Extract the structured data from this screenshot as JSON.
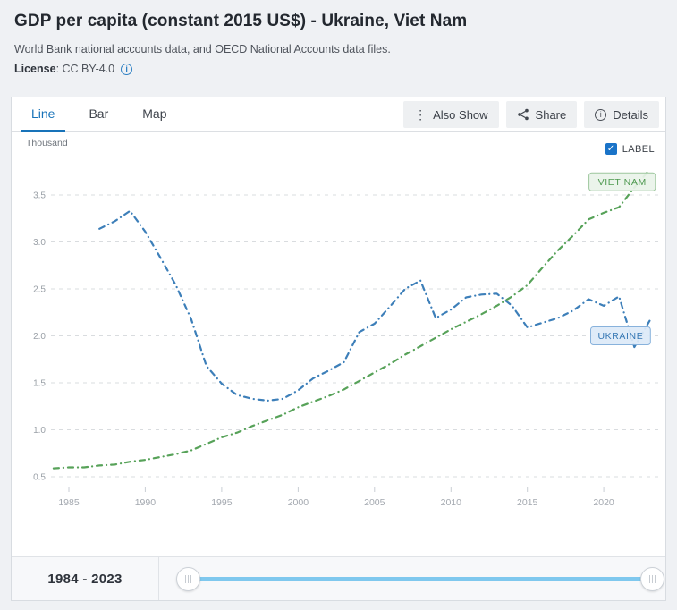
{
  "header": {
    "title": "GDP per capita (constant 2015 US$) - Ukraine, Viet Nam",
    "source": "World Bank national accounts data, and OECD National Accounts data files.",
    "license_label": "License",
    "license_value": ": CC BY-4.0",
    "license_info_icon": "i"
  },
  "toolbar": {
    "tabs": [
      {
        "label": "Line",
        "active": true
      },
      {
        "label": "Bar",
        "active": false
      },
      {
        "label": "Map",
        "active": false
      }
    ],
    "buttons": [
      {
        "label": "Also Show",
        "icon": "kebab-menu-icon"
      },
      {
        "label": "Share",
        "icon": "share-icon"
      },
      {
        "label": "Details",
        "icon": "info-icon"
      }
    ]
  },
  "chart": {
    "unit_label": "Thousand",
    "label_checkbox": {
      "label": "LABEL",
      "checked": true,
      "check_glyph": "✓"
    }
  },
  "chart_data": {
    "type": "line",
    "title": "GDP per capita (constant 2015 US$) - Ukraine, Viet Nam",
    "ylabel": "Thousand (constant 2015 US$)",
    "xlim": [
      1983.2,
      2023.8
    ],
    "ylim": [
      0.25,
      3.95
    ],
    "x_ticks": [
      1985,
      1990,
      1995,
      2000,
      2005,
      2010,
      2015,
      2020
    ],
    "y_ticks": [
      0.5,
      1.0,
      1.5,
      2.0,
      2.5,
      3.0,
      3.5
    ],
    "grid": "horizontal-dashed",
    "legend": "end-of-line-badges",
    "series": [
      {
        "name": "VIET NAM",
        "data_name": "vietnam",
        "color": "#57a259",
        "style": "dash-dot",
        "badge": {
          "year": 2021.2,
          "value": 3.64,
          "bg": "#eaf3ea",
          "border": "#9cc69d",
          "text_color": "#4e9950"
        },
        "points": [
          [
            1984,
            0.59
          ],
          [
            1985,
            0.6
          ],
          [
            1986,
            0.6
          ],
          [
            1987,
            0.62
          ],
          [
            1988,
            0.63
          ],
          [
            1989,
            0.66
          ],
          [
            1990,
            0.68
          ],
          [
            1991,
            0.71
          ],
          [
            1992,
            0.74
          ],
          [
            1993,
            0.78
          ],
          [
            1994,
            0.85
          ],
          [
            1995,
            0.92
          ],
          [
            1996,
            0.97
          ],
          [
            1997,
            1.04
          ],
          [
            1998,
            1.1
          ],
          [
            1999,
            1.16
          ],
          [
            2000,
            1.24
          ],
          [
            2001,
            1.3
          ],
          [
            2002,
            1.36
          ],
          [
            2003,
            1.43
          ],
          [
            2004,
            1.52
          ],
          [
            2005,
            1.61
          ],
          [
            2006,
            1.7
          ],
          [
            2007,
            1.8
          ],
          [
            2008,
            1.89
          ],
          [
            2009,
            1.98
          ],
          [
            2010,
            2.07
          ],
          [
            2011,
            2.15
          ],
          [
            2012,
            2.23
          ],
          [
            2013,
            2.32
          ],
          [
            2014,
            2.42
          ],
          [
            2015,
            2.54
          ],
          [
            2016,
            2.73
          ],
          [
            2017,
            2.91
          ],
          [
            2018,
            3.07
          ],
          [
            2019,
            3.24
          ],
          [
            2020,
            3.31
          ],
          [
            2021,
            3.37
          ],
          [
            2022,
            3.58
          ],
          [
            2023,
            3.77
          ]
        ]
      },
      {
        "name": "UKRAINE",
        "data_name": "ukraine",
        "color": "#3d7fb9",
        "style": "dash-dot",
        "badge": {
          "year": 2021.1,
          "value": 2.0,
          "bg": "#ddeaf8",
          "border": "#88b2dc",
          "text_color": "#3577b4"
        },
        "points": [
          [
            1987,
            3.14
          ],
          [
            1988,
            3.22
          ],
          [
            1989,
            3.33
          ],
          [
            1990,
            3.11
          ],
          [
            1991,
            2.83
          ],
          [
            1992,
            2.54
          ],
          [
            1993,
            2.18
          ],
          [
            1994,
            1.68
          ],
          [
            1995,
            1.49
          ],
          [
            1996,
            1.37
          ],
          [
            1997,
            1.33
          ],
          [
            1998,
            1.31
          ],
          [
            1999,
            1.33
          ],
          [
            2000,
            1.42
          ],
          [
            2001,
            1.55
          ],
          [
            2002,
            1.63
          ],
          [
            2003,
            1.72
          ],
          [
            2004,
            2.04
          ],
          [
            2005,
            2.13
          ],
          [
            2006,
            2.31
          ],
          [
            2007,
            2.5
          ],
          [
            2008,
            2.59
          ],
          [
            2009,
            2.19
          ],
          [
            2010,
            2.28
          ],
          [
            2011,
            2.41
          ],
          [
            2012,
            2.44
          ],
          [
            2013,
            2.45
          ],
          [
            2014,
            2.32
          ],
          [
            2015,
            2.09
          ],
          [
            2016,
            2.14
          ],
          [
            2017,
            2.19
          ],
          [
            2018,
            2.27
          ],
          [
            2019,
            2.39
          ],
          [
            2020,
            2.32
          ],
          [
            2021,
            2.42
          ],
          [
            2022,
            1.88
          ],
          [
            2023,
            2.16
          ]
        ]
      }
    ]
  },
  "footer": {
    "range_label": "1984 - 2023",
    "slider": {
      "min": 1984,
      "max": 2023,
      "start": 1984,
      "end": 2023
    }
  },
  "colors": {
    "accent_blue": "#1873b9",
    "ukraine_line": "#3d7fb9",
    "vietnam_line": "#57a259",
    "slider_track": "#7fc8ee",
    "checkbox_blue": "#1a73c8",
    "grid_line": "#d9dcdf",
    "axis_text": "#9aa0a7"
  }
}
